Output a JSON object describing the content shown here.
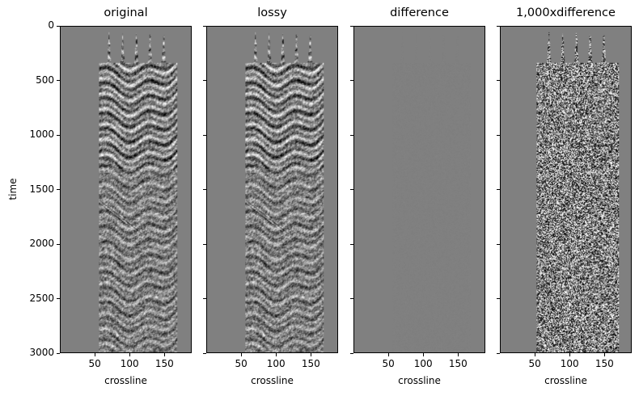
{
  "chart_data": {
    "type": "heatmap",
    "description_panels": 4,
    "panels": [
      {
        "title": "original",
        "xlabel": "crossline",
        "data_range_crossline": [
          55,
          170
        ],
        "mode": "seismic"
      },
      {
        "title": "lossy",
        "xlabel": "crossline",
        "data_range_crossline": [
          55,
          170
        ],
        "mode": "seismic"
      },
      {
        "title": "difference",
        "xlabel": "crossline",
        "data_range_crossline": [
          55,
          170
        ],
        "mode": "flat"
      },
      {
        "title": "1,000xdifference",
        "xlabel": "crossline",
        "data_range_crossline": [
          52,
          172
        ],
        "mode": "noise"
      }
    ],
    "ylabel": "time",
    "xlim": [
      0,
      189
    ],
    "ylim": [
      3000,
      0
    ],
    "xticks": [
      50,
      100,
      150
    ],
    "yticks": [
      0,
      500,
      1000,
      1500,
      2000,
      2500,
      3000
    ],
    "colormap": "gray",
    "background": "#808080"
  }
}
